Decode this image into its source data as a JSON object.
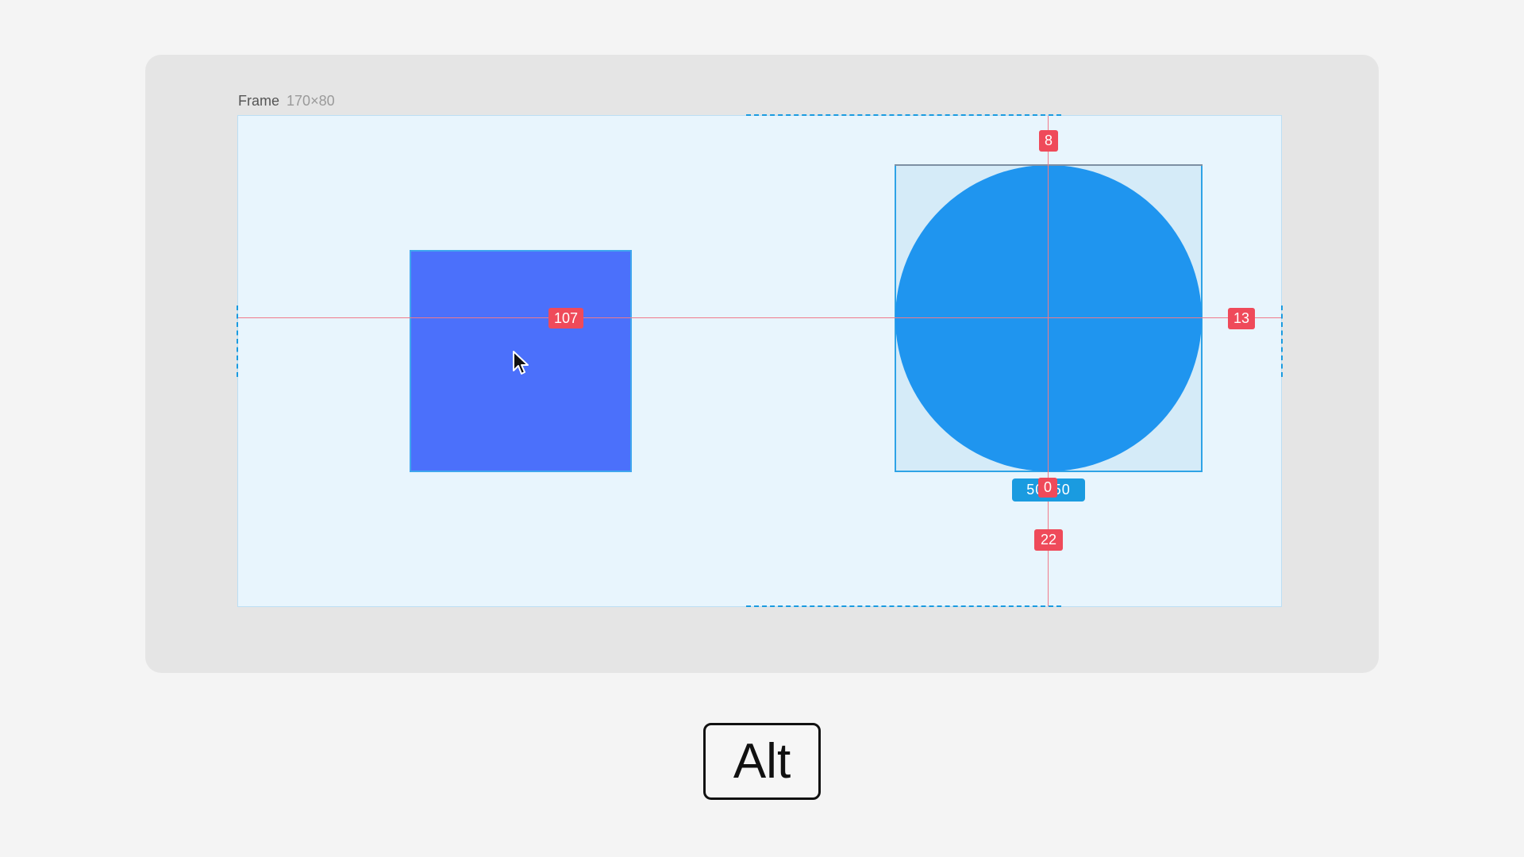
{
  "frame": {
    "label": "Frame",
    "dimensions": "170×80"
  },
  "measurements": {
    "left_gap": "107",
    "top_gap": "8",
    "right_gap": "13",
    "bottom_gap": "22",
    "center_offset": "0"
  },
  "selection": {
    "width": "50",
    "height": "50",
    "size_badge_text": "50×50"
  },
  "modifier_key": {
    "label": "Alt"
  },
  "colors": {
    "canvas_background": "#e5e5e5",
    "frame_fill": "#e8f5fd",
    "rectangle_fill": "#4b70fb",
    "circle_fill": "#1f95ef",
    "selection_accent": "#1a9be0",
    "measure_badge": "#ef4a5a"
  },
  "icons": {
    "cursor": "mouse-pointer-icon"
  }
}
